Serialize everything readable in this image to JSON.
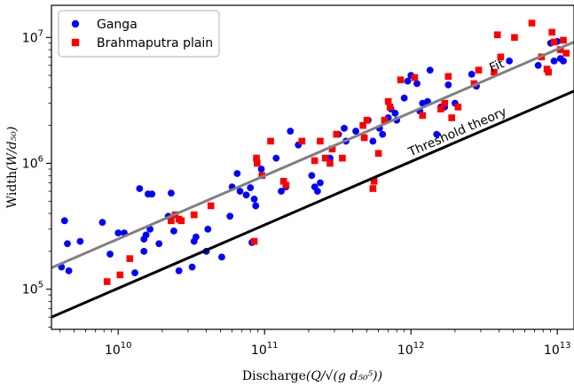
{
  "chart_data": {
    "type": "scatter",
    "xscale": "log",
    "yscale": "log",
    "xlim": [
      3500000000.0,
      13000000000000.0
    ],
    "ylim": [
      48000,
      18000000
    ],
    "xlabel": "Discharge",
    "xlabel_formula": "(Q/√(g d₅₀⁵))",
    "ylabel": "Width",
    "ylabel_formula": "(W/d₅₀)",
    "grid": false,
    "legend_placement": "top-left",
    "x_ticks": [
      {
        "value": 10000000000.0,
        "base": "10",
        "exp": "10"
      },
      {
        "value": 100000000000.0,
        "base": "10",
        "exp": "11"
      },
      {
        "value": 1000000000000.0,
        "base": "10",
        "exp": "12"
      },
      {
        "value": 10000000000000.0,
        "base": "10",
        "exp": "13"
      }
    ],
    "y_ticks": [
      {
        "value": 100000.0,
        "base": "10",
        "exp": "5"
      },
      {
        "value": 1000000.0,
        "base": "10",
        "exp": "6"
      },
      {
        "value": 10000000.0,
        "base": "10",
        "exp": "7"
      }
    ],
    "series": [
      {
        "name": "Ganga",
        "marker": "circle",
        "color": "#0000ff",
        "points": [
          [
            4100000000.0,
            150000
          ],
          [
            4300000000.0,
            350000
          ],
          [
            4500000000.0,
            230000
          ],
          [
            4600000000.0,
            140000
          ],
          [
            5500000000.0,
            240000
          ],
          [
            7800000000.0,
            340000
          ],
          [
            8800000000.0,
            190000
          ],
          [
            10000000000.0,
            280000
          ],
          [
            11000000000.0,
            280000
          ],
          [
            13000000000.0,
            135000
          ],
          [
            14000000000.0,
            630000
          ],
          [
            15000000000.0,
            200000
          ],
          [
            15000000000.0,
            250000
          ],
          [
            15500000000.0,
            270000
          ],
          [
            16000000000.0,
            570000
          ],
          [
            17000000000.0,
            570000
          ],
          [
            16500000000.0,
            300000
          ],
          [
            19000000000.0,
            230000
          ],
          [
            22000000000.0,
            380000
          ],
          [
            23000000000.0,
            580000
          ],
          [
            24000000000.0,
            290000
          ],
          [
            26000000000.0,
            140000
          ],
          [
            32000000000.0,
            150000
          ],
          [
            33000000000.0,
            240000
          ],
          [
            34000000000.0,
            260000
          ],
          [
            40000000000.0,
            200000
          ],
          [
            41000000000.0,
            300000
          ],
          [
            51000000000.0,
            180000
          ],
          [
            58000000000.0,
            380000
          ],
          [
            60000000000.0,
            650000
          ],
          [
            65000000000.0,
            830000
          ],
          [
            68000000000.0,
            600000
          ],
          [
            75000000000.0,
            560000
          ],
          [
            80000000000.0,
            640000
          ],
          [
            82000000000.0,
            235000
          ],
          [
            85000000000.0,
            520000
          ],
          [
            87000000000.0,
            460000
          ],
          [
            95000000000.0,
            900000
          ],
          [
            120000000000.0,
            1100000
          ],
          [
            130000000000.0,
            600000
          ],
          [
            140000000000.0,
            650000
          ],
          [
            150000000000.0,
            1800000
          ],
          [
            170000000000.0,
            1400000
          ],
          [
            210000000000.0,
            800000
          ],
          [
            220000000000.0,
            650000
          ],
          [
            230000000000.0,
            600000
          ],
          [
            240000000000.0,
            700000
          ],
          [
            280000000000.0,
            1100000
          ],
          [
            290000000000.0,
            1300000
          ],
          [
            320000000000.0,
            1700000
          ],
          [
            350000000000.0,
            1900000
          ],
          [
            360000000000.0,
            1500000
          ],
          [
            420000000000.0,
            1800000
          ],
          [
            480000000000.0,
            1600000
          ],
          [
            510000000000.0,
            2200000
          ],
          [
            550000000000.0,
            1500000
          ],
          [
            610000000000.0,
            1900000
          ],
          [
            640000000000.0,
            1700000
          ],
          [
            700000000000.0,
            2300000
          ],
          [
            730000000000.0,
            2700000
          ],
          [
            780000000000.0,
            2500000
          ],
          [
            800000000000.0,
            2200000
          ],
          [
            900000000000.0,
            3300000
          ],
          [
            950000000000.0,
            4500000
          ],
          [
            1000000000000.0,
            5000000
          ],
          [
            1100000000000.0,
            4300000
          ],
          [
            1150000000000.0,
            2600000
          ],
          [
            1200000000000.0,
            3000000
          ],
          [
            1300000000000.0,
            3100000
          ],
          [
            1350000000000.0,
            5500000
          ],
          [
            1500000000000.0,
            1700000
          ],
          [
            1600000000000.0,
            2800000
          ],
          [
            1700000000000.0,
            2800000
          ],
          [
            1800000000000.0,
            4200000
          ],
          [
            2000000000000.0,
            3000000
          ],
          [
            2600000000000.0,
            5100000
          ],
          [
            2800000000000.0,
            4100000
          ],
          [
            4700000000000.0,
            6500000
          ],
          [
            7400000000000.0,
            6000000
          ],
          [
            9000000000000.0,
            9000000
          ],
          [
            9500000000000.0,
            6500000
          ],
          [
            10000000000000.0,
            9300000
          ],
          [
            10500000000000.0,
            6800000
          ],
          [
            11000000000000.0,
            6500000
          ]
        ]
      },
      {
        "name": "Brahmaputra plain",
        "marker": "square",
        "color": "#ff0000",
        "points": [
          [
            8400000000.0,
            115000
          ],
          [
            10300000000.0,
            130000
          ],
          [
            12000000000.0,
            175000
          ],
          [
            23000000000.0,
            350000
          ],
          [
            24500000000.0,
            390000
          ],
          [
            26000000000.0,
            360000
          ],
          [
            27000000000.0,
            350000
          ],
          [
            33000000000.0,
            390000
          ],
          [
            43000000000.0,
            460000
          ],
          [
            85000000000.0,
            240000
          ],
          [
            88000000000.0,
            1100000
          ],
          [
            89000000000.0,
            1000000
          ],
          [
            96000000000.0,
            800000
          ],
          [
            110000000000.0,
            1500000
          ],
          [
            135000000000.0,
            720000
          ],
          [
            140000000000.0,
            670000
          ],
          [
            180000000000.0,
            1500000
          ],
          [
            220000000000.0,
            1050000
          ],
          [
            240000000000.0,
            1500000
          ],
          [
            260000000000.0,
            1100000
          ],
          [
            280000000000.0,
            1000000
          ],
          [
            290000000000.0,
            1300000
          ],
          [
            310000000000.0,
            1700000
          ],
          [
            340000000000.0,
            1100000
          ],
          [
            470000000000.0,
            2000000
          ],
          [
            480000000000.0,
            1600000
          ],
          [
            500000000000.0,
            2200000
          ],
          [
            550000000000.0,
            630000
          ],
          [
            560000000000.0,
            720000
          ],
          [
            600000000000.0,
            1200000
          ],
          [
            660000000000.0,
            2200000
          ],
          [
            700000000000.0,
            3100000
          ],
          [
            720000000000.0,
            2800000
          ],
          [
            850000000000.0,
            4600000
          ],
          [
            1060000000000.0,
            4800000
          ],
          [
            1200000000000.0,
            2400000
          ],
          [
            1600000000000.0,
            2700000
          ],
          [
            1700000000000.0,
            3000000
          ],
          [
            1800000000000.0,
            4900000
          ],
          [
            1900000000000.0,
            2300000
          ],
          [
            2100000000000.0,
            2800000
          ],
          [
            2700000000000.0,
            4300000
          ],
          [
            2900000000000.0,
            5500000
          ],
          [
            3700000000000.0,
            5300000
          ],
          [
            3900000000000.0,
            10500000
          ],
          [
            4100000000000.0,
            7000000
          ],
          [
            5100000000000.0,
            10000000
          ],
          [
            6700000000000.0,
            13000000
          ],
          [
            7800000000000.0,
            7000000
          ],
          [
            8500000000000.0,
            5600000
          ],
          [
            8700000000000.0,
            5300000
          ],
          [
            9200000000000.0,
            11000000
          ],
          [
            9500000000000.0,
            9200000
          ],
          [
            10500000000000.0,
            8000000
          ],
          [
            11000000000000.0,
            9500000
          ],
          [
            11500000000000.0,
            7500000
          ]
        ]
      }
    ],
    "lines": [
      {
        "name": "Fit",
        "label": "Fit",
        "color": "#808080",
        "points": [
          [
            3500000000.0,
            148000
          ],
          [
            13000000000000.0,
            9200000
          ]
        ]
      },
      {
        "name": "Threshold theory",
        "label": "Threshold theory",
        "color": "#000000",
        "points": [
          [
            3500000000.0,
            60000
          ],
          [
            13000000000000.0,
            3750000
          ]
        ]
      }
    ]
  }
}
